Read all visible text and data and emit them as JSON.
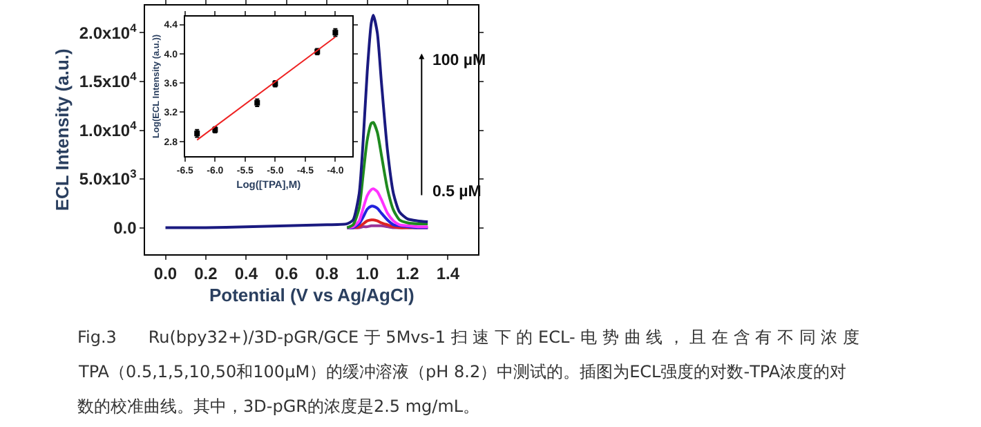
{
  "chart_data": [
    {
      "type": "line",
      "xlabel": "Potential (V vs Ag/AgCl)",
      "ylabel": "ECL Intensity (a.u.)",
      "x": [
        0,
        0.2,
        0.4,
        0.6,
        0.8,
        0.9,
        0.93,
        0.96,
        0.98,
        1.0,
        1.02,
        1.03,
        1.05,
        1.07,
        1.1,
        1.13,
        1.16,
        1.2,
        1.25,
        1.3
      ],
      "series": [
        {
          "color": "#993399",
          "x": [
            0.9,
            0.93,
            0.96,
            0.98,
            1.0,
            1.02,
            1.03,
            1.05,
            1.07,
            1.1,
            1.13,
            1.16,
            1.2,
            1.25,
            1.3
          ],
          "values": [
            0,
            0,
            0,
            100,
            100,
            200,
            200,
            200,
            200,
            100,
            0,
            0,
            0,
            0,
            0
          ]
        },
        {
          "color": "#dd2222",
          "x": [
            0.9,
            0.93,
            0.96,
            0.98,
            1.0,
            1.02,
            1.03,
            1.05,
            1.07,
            1.1,
            1.13,
            1.16,
            1.2,
            1.25,
            1.3
          ],
          "values": [
            0,
            0,
            100,
            400,
            700,
            800,
            800,
            700,
            500,
            300,
            100,
            0,
            0,
            0,
            0
          ]
        },
        {
          "color": "#2222dd",
          "x": [
            0.9,
            0.93,
            0.96,
            0.98,
            1.0,
            1.02,
            1.03,
            1.05,
            1.07,
            1.1,
            1.13,
            1.16,
            1.2,
            1.25,
            1.3
          ],
          "values": [
            0,
            0,
            400,
            1100,
            1900,
            2200,
            2200,
            2000,
            1500,
            800,
            300,
            200,
            100,
            0,
            0
          ]
        },
        {
          "color": "#ff33ff",
          "x": [
            0.9,
            0.93,
            0.96,
            0.98,
            1.0,
            1.02,
            1.03,
            1.05,
            1.07,
            1.1,
            1.13,
            1.16,
            1.2,
            1.25,
            1.3
          ],
          "values": [
            0,
            100,
            700,
            2000,
            3300,
            3900,
            4000,
            3700,
            2900,
            1500,
            700,
            300,
            200,
            100,
            100
          ]
        },
        {
          "color": "#1f8a1f",
          "x": [
            0.9,
            0.93,
            0.96,
            0.98,
            1.0,
            1.02,
            1.03,
            1.05,
            1.07,
            1.1,
            1.13,
            1.16,
            1.2,
            1.25,
            1.3
          ],
          "values": [
            0,
            300,
            2000,
            5500,
            9000,
            10700,
            10800,
            9800,
            7500,
            4000,
            1800,
            800,
            500,
            400,
            400
          ]
        },
        {
          "color": "#1a1a80",
          "values": [
            0,
            0,
            100,
            200,
            300,
            400,
            800,
            3500,
            9000,
            16000,
            21000,
            21800,
            20000,
            15000,
            8000,
            3500,
            1600,
            900,
            700,
            600
          ]
        }
      ],
      "xlim": [
        -0.1,
        1.55
      ],
      "xticks": [
        {
          "value": 0,
          "label": "0.0"
        },
        0.2,
        0.4,
        0.6,
        0.8,
        {
          "value": 1,
          "label": "1.0"
        },
        1.2,
        1.4
      ],
      "ylim": [
        -2700,
        22800
      ],
      "yticks": [
        {
          "value": 0,
          "label": "0.0"
        },
        {
          "value": 5000,
          "label": "5.0x10$^{3}$"
        },
        {
          "value": 10000,
          "label": "1.0x10$^{4}$"
        },
        {
          "value": 15000,
          "label": "1.5x10$^{4}$"
        },
        {
          "value": 20000,
          "label": "2.0x10$^{4}$"
        }
      ],
      "annotations": [
        "100 µM",
        "0.5 µM",
        "Fig.3      Ru(bpy32+)/3D-pGR/GCE 于 5Mvs-1 扫 速 下 的 ECL- 电 势 曲 线 ， 且 在 含 有 不 同 浓 度",
        "TPA（0.5,1,5,10,50和100μM）的缓冲溶液（pH 8.2）中测试的。插图为ECL强度的对数-TPA浓度的对",
        "数的校准曲线。其中，3D-pGR的浓度是2.5 mg/mL。"
      ],
      "marker": "none",
      "line_style": "solid"
    },
    {
      "type": "scatter",
      "xlabel": "Log([TPA],M)",
      "ylabel": "Log(ECL Intensity (a.u.))",
      "x": [
        -6.3,
        -6.0,
        -5.3,
        -5.0,
        -4.3,
        -4.0
      ],
      "series": [
        {
          "color": "#000000",
          "values": [
            2.91,
            2.96,
            3.33,
            3.59,
            4.03,
            4.29
          ],
          "errors": [
            0.05,
            0.04,
            0.05,
            0.04,
            0.04,
            0.05
          ]
        },
        {
          "type": "line",
          "marker": "none",
          "color": "#ee2222",
          "x": [
            -6.3,
            -4.0
          ],
          "values": [
            2.82,
            4.23
          ]
        }
      ],
      "xlim": [
        -6.5,
        -3.72
      ],
      "xticks": [
        -6.5,
        {
          "value": -6,
          "label": "-6.0"
        },
        -5.5,
        {
          "value": -5,
          "label": "-5.0"
        },
        -4.5,
        {
          "value": -4,
          "label": "-4.0"
        }
      ],
      "ylim": [
        2.6,
        4.51
      ],
      "yticks": [
        2.8,
        3.2,
        3.6,
        {
          "value": 4,
          "label": "4.0"
        },
        4.4
      ],
      "marker": "square"
    }
  ]
}
